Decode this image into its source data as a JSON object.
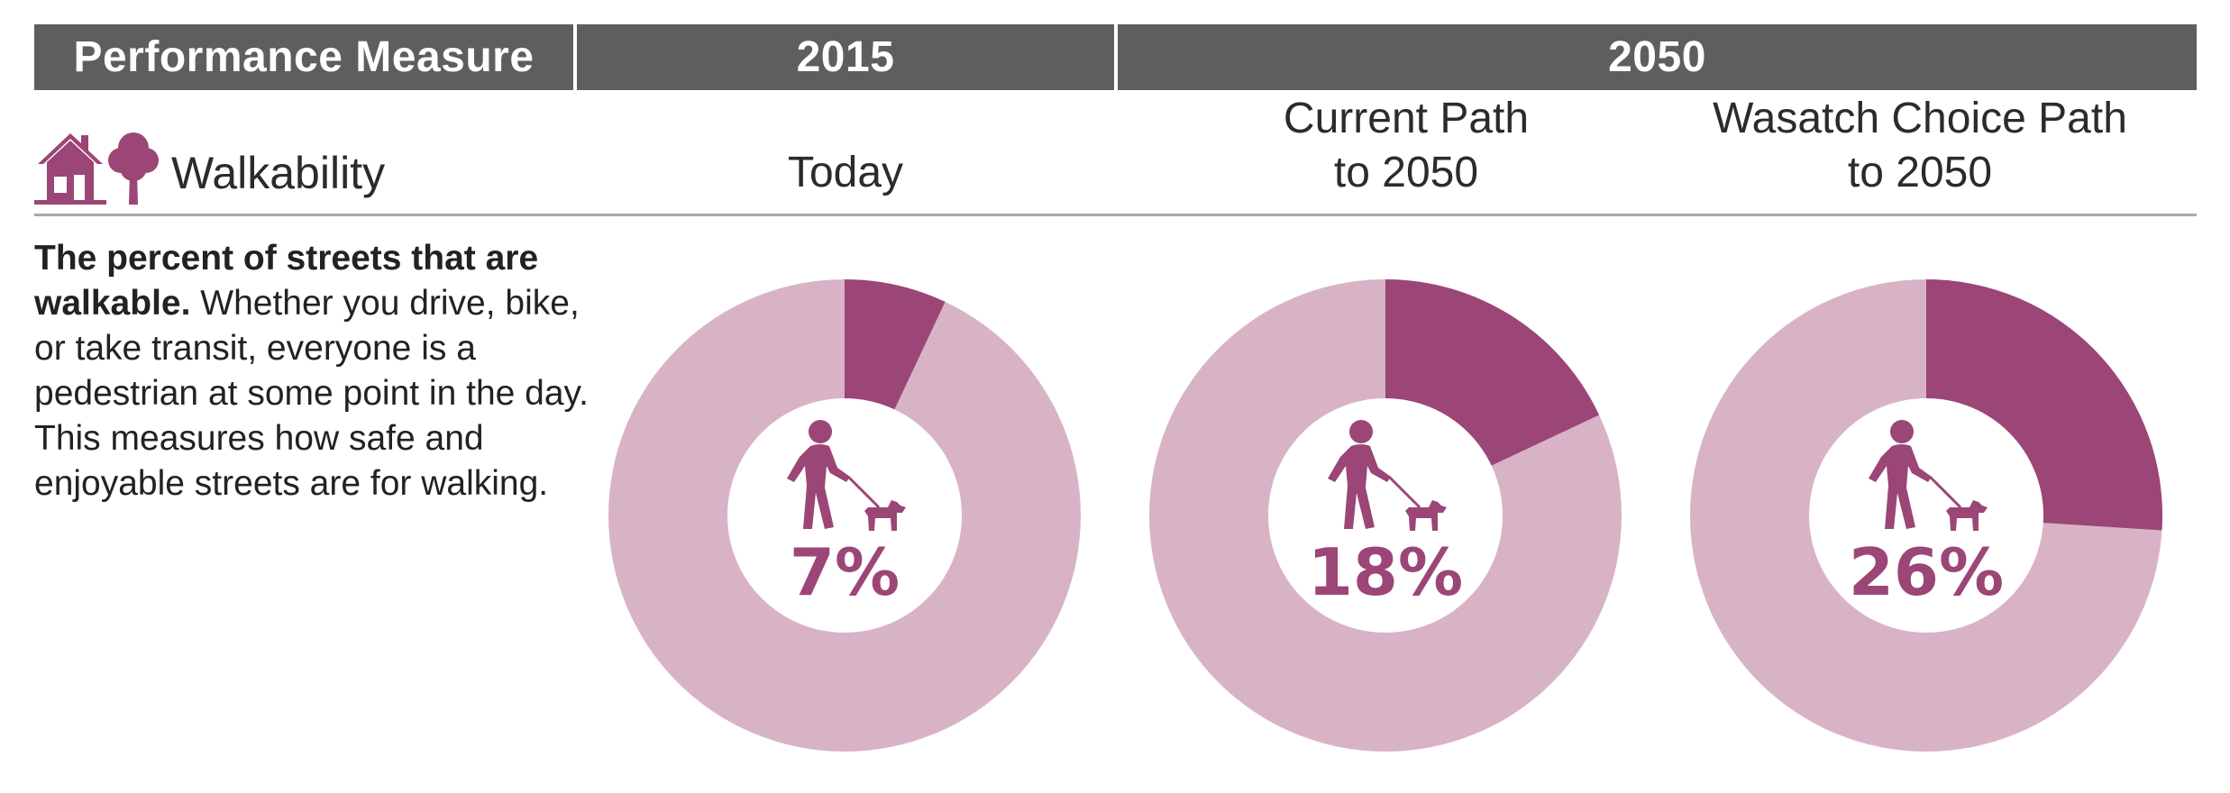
{
  "header": {
    "measure_label": "Performance Measure",
    "year_2015": "2015",
    "year_2050": "2050"
  },
  "measure": {
    "name": "Walkability",
    "icons": [
      "house-icon",
      "tree-icon"
    ],
    "description_lead": "The percent of streets that are walkable.",
    "description_body": " Whether you drive, bike, or take transit, everyone is a pedestrian at some point in the day. This measures how safe and enjoyable streets are for walking."
  },
  "columns": {
    "today": "Today",
    "current_path": "Current Path\nto 2050",
    "wasatch_path": "Wasatch Choice Path\nto 2050"
  },
  "colors": {
    "header_bg": "#5e5e5e",
    "accent": "#9b4677",
    "remainder": "#d8b3c6"
  },
  "chart_data": {
    "type": "pie",
    "title": "Walkability",
    "description": "The percent of streets that are walkable.",
    "categories": [
      "Today",
      "Current Path to 2050",
      "Wasatch Choice Path to 2050"
    ],
    "values": [
      7,
      18,
      26
    ],
    "labels": [
      "7%",
      "18%",
      "26%"
    ],
    "unit": "%",
    "max": 100,
    "center_icon": "person-walking-dog-icon"
  }
}
